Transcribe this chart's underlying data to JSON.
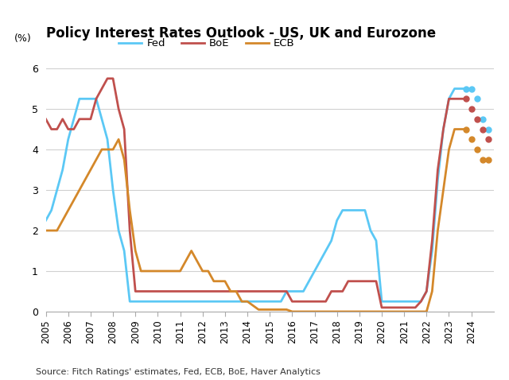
{
  "title": "Policy Interest Rates Outlook - US, UK and Eurozone",
  "ylabel": "(%)",
  "source": "Source: Fitch Ratings' estimates, Fed, ECB, BoE, Haver Analytics",
  "ylim": [
    0,
    6
  ],
  "yticks": [
    0,
    1,
    2,
    3,
    4,
    5,
    6
  ],
  "background_color": "#ffffff",
  "fed_color": "#5BC8F5",
  "boe_color": "#C0504D",
  "ecb_color": "#D4882A",
  "fed_solid_x": [
    2005.0,
    2005.25,
    2005.5,
    2005.75,
    2006.0,
    2006.25,
    2006.5,
    2006.75,
    2007.0,
    2007.25,
    2007.5,
    2007.75,
    2008.0,
    2008.25,
    2008.5,
    2008.75,
    2009.0,
    2009.25,
    2009.5,
    2009.75,
    2010.0,
    2010.25,
    2010.5,
    2010.75,
    2011.0,
    2011.25,
    2011.5,
    2011.75,
    2012.0,
    2012.25,
    2012.5,
    2012.75,
    2013.0,
    2013.25,
    2013.5,
    2013.75,
    2014.0,
    2014.25,
    2014.5,
    2014.75,
    2015.0,
    2015.25,
    2015.5,
    2015.75,
    2016.0,
    2016.25,
    2016.5,
    2016.75,
    2017.0,
    2017.25,
    2017.5,
    2017.75,
    2018.0,
    2018.25,
    2018.5,
    2018.75,
    2019.0,
    2019.25,
    2019.5,
    2019.75,
    2020.0,
    2020.25,
    2020.5,
    2020.75,
    2021.0,
    2021.25,
    2021.5,
    2021.75,
    2022.0,
    2022.25,
    2022.5,
    2022.75,
    2023.0,
    2023.25,
    2023.5,
    2023.75
  ],
  "fed_solid_y": [
    2.25,
    2.5,
    3.0,
    3.5,
    4.25,
    4.75,
    5.25,
    5.25,
    5.25,
    5.25,
    4.75,
    4.25,
    3.0,
    2.0,
    1.5,
    0.25,
    0.25,
    0.25,
    0.25,
    0.25,
    0.25,
    0.25,
    0.25,
    0.25,
    0.25,
    0.25,
    0.25,
    0.25,
    0.25,
    0.25,
    0.25,
    0.25,
    0.25,
    0.25,
    0.25,
    0.25,
    0.25,
    0.25,
    0.25,
    0.25,
    0.25,
    0.25,
    0.25,
    0.5,
    0.5,
    0.5,
    0.5,
    0.75,
    1.0,
    1.25,
    1.5,
    1.75,
    2.25,
    2.5,
    2.5,
    2.5,
    2.5,
    2.5,
    2.0,
    1.75,
    0.25,
    0.25,
    0.25,
    0.25,
    0.25,
    0.25,
    0.25,
    0.25,
    0.5,
    1.5,
    3.25,
    4.5,
    5.25,
    5.5,
    5.5,
    5.5
  ],
  "fed_dot_x": [
    2023.75,
    2024.0,
    2024.25,
    2024.5,
    2024.75
  ],
  "fed_dot_y": [
    5.5,
    5.5,
    5.25,
    4.75,
    4.5
  ],
  "boe_solid_x": [
    2005.0,
    2005.25,
    2005.5,
    2005.75,
    2006.0,
    2006.25,
    2006.5,
    2006.75,
    2007.0,
    2007.25,
    2007.5,
    2007.75,
    2008.0,
    2008.25,
    2008.5,
    2008.75,
    2009.0,
    2009.25,
    2009.5,
    2009.75,
    2010.0,
    2010.25,
    2010.5,
    2010.75,
    2011.0,
    2011.25,
    2011.5,
    2011.75,
    2012.0,
    2012.25,
    2012.5,
    2012.75,
    2013.0,
    2013.25,
    2013.5,
    2013.75,
    2014.0,
    2014.25,
    2014.5,
    2014.75,
    2015.0,
    2015.25,
    2015.5,
    2015.75,
    2016.0,
    2016.25,
    2016.5,
    2016.75,
    2017.0,
    2017.25,
    2017.5,
    2017.75,
    2018.0,
    2018.25,
    2018.5,
    2018.75,
    2019.0,
    2019.25,
    2019.5,
    2019.75,
    2020.0,
    2020.25,
    2020.5,
    2020.75,
    2021.0,
    2021.25,
    2021.5,
    2021.75,
    2022.0,
    2022.25,
    2022.5,
    2022.75,
    2023.0,
    2023.25,
    2023.5,
    2023.75
  ],
  "boe_solid_y": [
    4.75,
    4.5,
    4.5,
    4.75,
    4.5,
    4.5,
    4.75,
    4.75,
    4.75,
    5.25,
    5.5,
    5.75,
    5.75,
    5.0,
    4.5,
    2.0,
    0.5,
    0.5,
    0.5,
    0.5,
    0.5,
    0.5,
    0.5,
    0.5,
    0.5,
    0.5,
    0.5,
    0.5,
    0.5,
    0.5,
    0.5,
    0.5,
    0.5,
    0.5,
    0.5,
    0.5,
    0.5,
    0.5,
    0.5,
    0.5,
    0.5,
    0.5,
    0.5,
    0.5,
    0.25,
    0.25,
    0.25,
    0.25,
    0.25,
    0.25,
    0.25,
    0.5,
    0.5,
    0.5,
    0.75,
    0.75,
    0.75,
    0.75,
    0.75,
    0.75,
    0.1,
    0.1,
    0.1,
    0.1,
    0.1,
    0.1,
    0.1,
    0.25,
    0.5,
    1.75,
    3.5,
    4.5,
    5.25,
    5.25,
    5.25,
    5.25
  ],
  "boe_dot_x": [
    2023.75,
    2024.0,
    2024.25,
    2024.5,
    2024.75
  ],
  "boe_dot_y": [
    5.25,
    5.0,
    4.75,
    4.5,
    4.25
  ],
  "ecb_solid_x": [
    2005.0,
    2005.25,
    2005.5,
    2005.75,
    2006.0,
    2006.25,
    2006.5,
    2006.75,
    2007.0,
    2007.25,
    2007.5,
    2007.75,
    2008.0,
    2008.25,
    2008.5,
    2008.75,
    2009.0,
    2009.25,
    2009.5,
    2009.75,
    2010.0,
    2010.25,
    2010.5,
    2010.75,
    2011.0,
    2011.25,
    2011.5,
    2011.75,
    2012.0,
    2012.25,
    2012.5,
    2012.75,
    2013.0,
    2013.25,
    2013.5,
    2013.75,
    2014.0,
    2014.25,
    2014.5,
    2014.75,
    2015.0,
    2015.25,
    2015.5,
    2015.75,
    2016.0,
    2016.25,
    2016.5,
    2016.75,
    2017.0,
    2017.25,
    2017.5,
    2017.75,
    2018.0,
    2018.25,
    2018.5,
    2018.75,
    2019.0,
    2019.25,
    2019.5,
    2019.75,
    2020.0,
    2020.25,
    2020.5,
    2020.75,
    2021.0,
    2021.25,
    2021.5,
    2021.75,
    2022.0,
    2022.25,
    2022.5,
    2022.75,
    2023.0,
    2023.25,
    2023.5,
    2023.75
  ],
  "ecb_solid_y": [
    2.0,
    2.0,
    2.0,
    2.25,
    2.5,
    2.75,
    3.0,
    3.25,
    3.5,
    3.75,
    4.0,
    4.0,
    4.0,
    4.25,
    3.75,
    2.5,
    1.5,
    1.0,
    1.0,
    1.0,
    1.0,
    1.0,
    1.0,
    1.0,
    1.0,
    1.25,
    1.5,
    1.25,
    1.0,
    1.0,
    0.75,
    0.75,
    0.75,
    0.5,
    0.5,
    0.25,
    0.25,
    0.15,
    0.05,
    0.05,
    0.05,
    0.05,
    0.05,
    0.05,
    0.0,
    0.0,
    0.0,
    0.0,
    0.0,
    0.0,
    0.0,
    0.0,
    0.0,
    0.0,
    0.0,
    0.0,
    0.0,
    0.0,
    0.0,
    0.0,
    0.0,
    0.0,
    0.0,
    0.0,
    0.0,
    0.0,
    0.0,
    0.0,
    0.0,
    0.5,
    2.0,
    3.0,
    4.0,
    4.5,
    4.5,
    4.5
  ],
  "ecb_dot_x": [
    2023.75,
    2024.0,
    2024.25,
    2024.5,
    2024.75
  ],
  "ecb_dot_y": [
    4.5,
    4.25,
    4.0,
    3.75,
    3.75
  ]
}
